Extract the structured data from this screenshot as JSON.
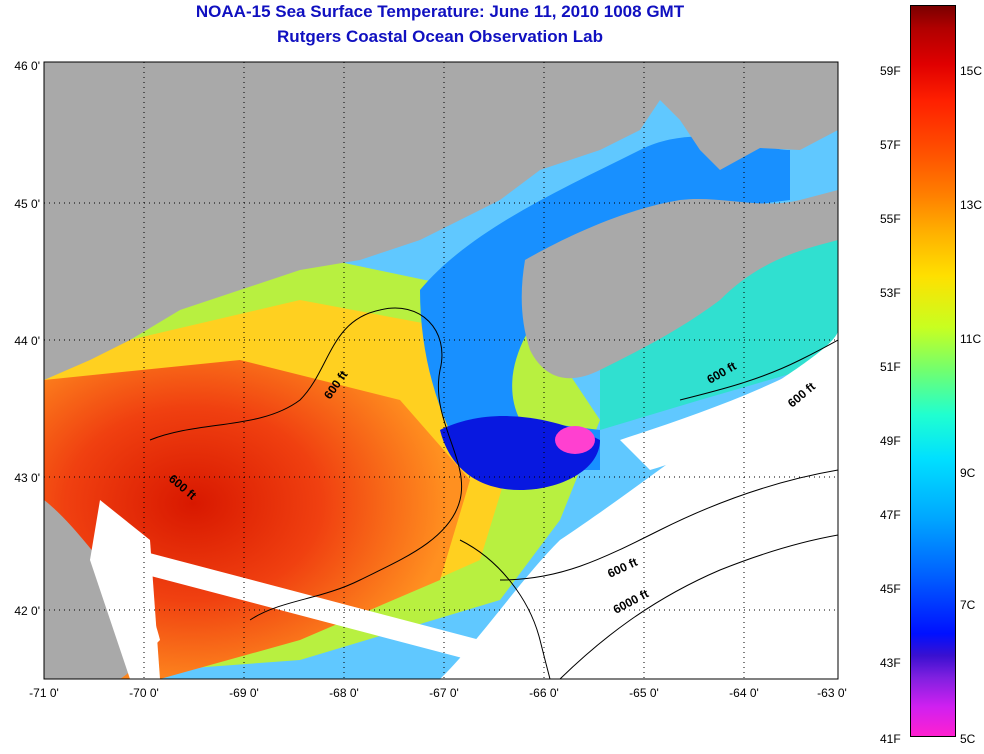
{
  "title": {
    "line1": "NOAA-15 Sea Surface Temperature:  June 11, 2010 1008 GMT",
    "line2": "Rutgers Coastal Ocean Observation Lab"
  },
  "axes": {
    "x_ticks": [
      "-71 0'",
      "-70 0'",
      "-69 0'",
      "-68 0'",
      "-67 0'",
      "-66 0'",
      "-65 0'",
      "-64 0'",
      "-63 0'"
    ],
    "y_ticks": [
      "46 0'",
      "45 0'",
      "44 0'",
      "43 0'",
      "42 0'"
    ]
  },
  "contours": {
    "c1": "600 ft",
    "c2": "600 ft",
    "c3": "600 ft",
    "c4": "600 ft",
    "c5": "600 ft",
    "c6": "6000 ft"
  },
  "colorbar": {
    "fahrenheit": [
      "59F",
      "57F",
      "55F",
      "53F",
      "51F",
      "49F",
      "47F",
      "45F",
      "43F",
      "41F"
    ],
    "celsius": [
      "15C",
      "13C",
      "11C",
      "9C",
      "7C",
      "5C"
    ]
  },
  "colors": {
    "land": "#a9a9a9",
    "cloud": "#ffffff",
    "warm": "#e82000",
    "cold": "#0820ff",
    "title": "#1010c0"
  }
}
